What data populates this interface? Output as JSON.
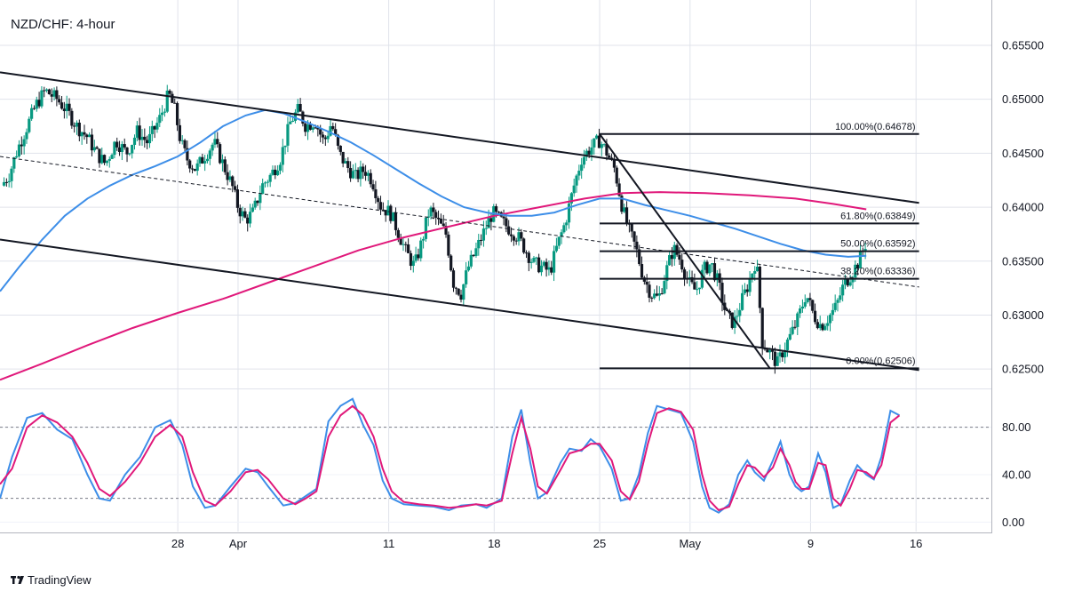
{
  "title": "NZD/CHF: 4-hour",
  "brand": "TradingView",
  "colors": {
    "bull": "#089981",
    "bear": "#131722",
    "ma_blue": "#3d8ee8",
    "ma_pink": "#e0187a",
    "stoch_k": "#3d8ee8",
    "stoch_d": "#e0187a",
    "grid": "#e0e3eb"
  },
  "chart_data": [
    {
      "type": "candlestick",
      "title": "NZD/CHF: 4-hour",
      "ylim": [
        0.6232,
        0.6592
      ],
      "y_ticks": [
        "0.62500",
        "0.63000",
        "0.63500",
        "0.64000",
        "0.64500",
        "0.65000",
        "0.65500"
      ],
      "x_ticks": [
        {
          "label": "28",
          "day": 7
        },
        {
          "label": "Apr",
          "day": 11
        },
        {
          "label": "11",
          "day": 21
        },
        {
          "label": "18",
          "day": 28
        },
        {
          "label": "25",
          "day": 35
        },
        {
          "label": "May",
          "day": 41
        },
        {
          "label": "9",
          "day": 49
        },
        {
          "label": "16",
          "day": 56
        }
      ],
      "day_range": [
        -4.8,
        61
      ],
      "price_path": [
        [
          -4.7,
          0.642
        ],
        [
          -4.2,
          0.643
        ],
        [
          -3.6,
          0.6455
        ],
        [
          -3.0,
          0.6475
        ],
        [
          -2.4,
          0.6495
        ],
        [
          -1.8,
          0.6508
        ],
        [
          -1.0,
          0.65
        ],
        [
          -0.4,
          0.649
        ],
        [
          0.3,
          0.6475
        ],
        [
          1.0,
          0.6465
        ],
        [
          1.6,
          0.645
        ],
        [
          2.2,
          0.644
        ],
        [
          2.9,
          0.6462
        ],
        [
          3.6,
          0.645
        ],
        [
          4.3,
          0.647
        ],
        [
          5.0,
          0.646
        ],
        [
          5.8,
          0.6482
        ],
        [
          6.4,
          0.6505
        ],
        [
          6.8,
          0.649
        ],
        [
          7.2,
          0.646
        ],
        [
          7.6,
          0.6445
        ],
        [
          8.2,
          0.6435
        ],
        [
          8.8,
          0.6448
        ],
        [
          9.4,
          0.646
        ],
        [
          10.0,
          0.644
        ],
        [
          10.6,
          0.642
        ],
        [
          11.0,
          0.64
        ],
        [
          11.5,
          0.6388
        ],
        [
          12.0,
          0.6395
        ],
        [
          12.6,
          0.642
        ],
        [
          13.2,
          0.643
        ],
        [
          13.8,
          0.6445
        ],
        [
          14.5,
          0.648
        ],
        [
          15.0,
          0.649
        ],
        [
          15.5,
          0.6475
        ],
        [
          16.1,
          0.648
        ],
        [
          16.7,
          0.646
        ],
        [
          17.2,
          0.6478
        ],
        [
          17.7,
          0.645
        ],
        [
          18.2,
          0.6438
        ],
        [
          18.8,
          0.6428
        ],
        [
          19.4,
          0.6435
        ],
        [
          19.9,
          0.6425
        ],
        [
          20.5,
          0.64
        ],
        [
          21.1,
          0.6395
        ],
        [
          21.6,
          0.6378
        ],
        [
          22.1,
          0.636
        ],
        [
          22.7,
          0.6345
        ],
        [
          23.2,
          0.6368
        ],
        [
          23.7,
          0.6398
        ],
        [
          24.2,
          0.6388
        ],
        [
          24.8,
          0.6375
        ],
        [
          25.3,
          0.633
        ],
        [
          25.8,
          0.632
        ],
        [
          26.3,
          0.6345
        ],
        [
          26.8,
          0.636
        ],
        [
          27.4,
          0.638
        ],
        [
          27.9,
          0.6395
        ],
        [
          28.4,
          0.6388
        ],
        [
          29.0,
          0.638
        ],
        [
          29.6,
          0.6372
        ],
        [
          30.1,
          0.636
        ],
        [
          30.6,
          0.6348
        ],
        [
          31.1,
          0.6345
        ],
        [
          31.7,
          0.634
        ],
        [
          32.2,
          0.6365
        ],
        [
          32.7,
          0.6385
        ],
        [
          33.3,
          0.642
        ],
        [
          33.8,
          0.6445
        ],
        [
          34.4,
          0.6455
        ],
        [
          35.0,
          0.6462
        ],
        [
          35.5,
          0.645
        ],
        [
          36.0,
          0.6435
        ],
        [
          36.5,
          0.64
        ],
        [
          36.9,
          0.638
        ],
        [
          37.4,
          0.6362
        ],
        [
          37.9,
          0.6335
        ],
        [
          38.4,
          0.632
        ],
        [
          38.9,
          0.6315
        ],
        [
          39.4,
          0.634
        ],
        [
          39.9,
          0.6362
        ],
        [
          40.4,
          0.635
        ],
        [
          40.9,
          0.633
        ],
        [
          41.4,
          0.6322
        ],
        [
          41.9,
          0.6342
        ],
        [
          42.4,
          0.6348
        ],
        [
          42.9,
          0.6328
        ],
        [
          43.4,
          0.63
        ],
        [
          43.9,
          0.6292
        ],
        [
          44.4,
          0.6312
        ],
        [
          44.9,
          0.633
        ],
        [
          45.4,
          0.6352
        ],
        [
          45.8,
          0.6275
        ],
        [
          46.3,
          0.6265
        ],
        [
          46.8,
          0.6255
        ],
        [
          47.2,
          0.6268
        ],
        [
          47.7,
          0.6282
        ],
        [
          48.2,
          0.6298
        ],
        [
          48.7,
          0.632
        ],
        [
          49.2,
          0.63
        ],
        [
          49.7,
          0.629
        ],
        [
          50.2,
          0.6298
        ],
        [
          50.7,
          0.6308
        ],
        [
          51.2,
          0.6328
        ],
        [
          51.7,
          0.6338
        ],
        [
          52.2,
          0.635
        ],
        [
          52.7,
          0.6368
        ]
      ],
      "ma_blue": [
        [
          -4.8,
          0.6322
        ],
        [
          -3.5,
          0.6345
        ],
        [
          -2.0,
          0.637
        ],
        [
          -0.5,
          0.6392
        ],
        [
          1.0,
          0.6408
        ],
        [
          2.5,
          0.642
        ],
        [
          4.0,
          0.643
        ],
        [
          5.5,
          0.6438
        ],
        [
          7.0,
          0.6447
        ],
        [
          8.5,
          0.646
        ],
        [
          10.0,
          0.6475
        ],
        [
          11.5,
          0.6485
        ],
        [
          12.8,
          0.649
        ],
        [
          14.0,
          0.6487
        ],
        [
          15.5,
          0.6479
        ],
        [
          17.0,
          0.647
        ],
        [
          18.5,
          0.646
        ],
        [
          20.0,
          0.6448
        ],
        [
          21.5,
          0.6435
        ],
        [
          23.0,
          0.6422
        ],
        [
          24.5,
          0.641
        ],
        [
          26.0,
          0.64
        ],
        [
          27.5,
          0.6395
        ],
        [
          29.0,
          0.6392
        ],
        [
          30.5,
          0.6392
        ],
        [
          32.0,
          0.6395
        ],
        [
          33.5,
          0.6402
        ],
        [
          35.0,
          0.6408
        ],
        [
          36.5,
          0.6408
        ],
        [
          38.0,
          0.6402
        ],
        [
          39.5,
          0.6397
        ],
        [
          41.0,
          0.6392
        ],
        [
          42.5,
          0.6386
        ],
        [
          44.0,
          0.638
        ],
        [
          45.5,
          0.6373
        ],
        [
          47.0,
          0.6366
        ],
        [
          48.5,
          0.636
        ],
        [
          50.0,
          0.6356
        ],
        [
          51.5,
          0.6354
        ],
        [
          52.7,
          0.6355
        ]
      ],
      "ma_pink": [
        [
          -4.8,
          0.624
        ],
        [
          -2.0,
          0.6255
        ],
        [
          1.0,
          0.6272
        ],
        [
          4.0,
          0.6288
        ],
        [
          7.0,
          0.6302
        ],
        [
          10.0,
          0.6315
        ],
        [
          13.0,
          0.633
        ],
        [
          16.0,
          0.6345
        ],
        [
          19.0,
          0.636
        ],
        [
          22.0,
          0.6372
        ],
        [
          25.0,
          0.6382
        ],
        [
          28.0,
          0.6392
        ],
        [
          31.0,
          0.64
        ],
        [
          34.0,
          0.6408
        ],
        [
          36.5,
          0.6413
        ],
        [
          39.0,
          0.6414
        ],
        [
          42.0,
          0.6413
        ],
        [
          45.0,
          0.6411
        ],
        [
          48.0,
          0.6408
        ],
        [
          50.5,
          0.6403
        ],
        [
          52.7,
          0.6398
        ]
      ],
      "channel_upper": [
        [
          -4.8,
          0.6525
        ],
        [
          56.2,
          0.6404
        ]
      ],
      "channel_lower": [
        [
          -4.8,
          0.637
        ],
        [
          56.2,
          0.6249
        ]
      ],
      "channel_mid": [
        [
          -4.8,
          0.6447
        ],
        [
          56.2,
          0.6326
        ]
      ],
      "trendline": [
        [
          35.0,
          0.64678
        ],
        [
          46.3,
          0.62506
        ]
      ],
      "fib_start_day": 35.0,
      "fib_end_day": 56.2,
      "fib_levels": [
        {
          "label": "100.00%(0.64678)",
          "price": 0.64678
        },
        {
          "label": "61.80%(0.63849)",
          "price": 0.63849
        },
        {
          "label": "50.00%(0.63592)",
          "price": 0.63592
        },
        {
          "label": "38.20%(0.63336)",
          "price": 0.63336
        },
        {
          "label": "0.00%(0.62506)",
          "price": 0.62506
        }
      ]
    },
    {
      "type": "line",
      "title": "",
      "ylim": [
        -8,
        112
      ],
      "y_ticks": [
        "0.00",
        "40.00",
        "80.00"
      ],
      "reference_lines": [
        20,
        80
      ],
      "stoch_k": [
        [
          -4.8,
          20
        ],
        [
          -4.0,
          55
        ],
        [
          -3.0,
          88
        ],
        [
          -2.0,
          92
        ],
        [
          -1.0,
          78
        ],
        [
          0.0,
          70
        ],
        [
          1.0,
          40
        ],
        [
          1.8,
          20
        ],
        [
          2.5,
          18
        ],
        [
          3.5,
          40
        ],
        [
          4.5,
          55
        ],
        [
          5.5,
          80
        ],
        [
          6.5,
          86
        ],
        [
          7.3,
          65
        ],
        [
          8.0,
          30
        ],
        [
          8.8,
          12
        ],
        [
          9.5,
          14
        ],
        [
          10.5,
          30
        ],
        [
          11.5,
          45
        ],
        [
          12.3,
          42
        ],
        [
          13.0,
          30
        ],
        [
          14.0,
          14
        ],
        [
          14.8,
          16
        ],
        [
          15.5,
          22
        ],
        [
          16.2,
          28
        ],
        [
          17.0,
          85
        ],
        [
          17.8,
          98
        ],
        [
          18.6,
          104
        ],
        [
          19.3,
          82
        ],
        [
          20.0,
          65
        ],
        [
          20.6,
          35
        ],
        [
          21.2,
          20
        ],
        [
          22.0,
          15
        ],
        [
          23.0,
          14
        ],
        [
          24.0,
          13
        ],
        [
          25.0,
          10
        ],
        [
          25.8,
          14
        ],
        [
          26.8,
          15
        ],
        [
          27.5,
          12
        ],
        [
          28.5,
          20
        ],
        [
          29.2,
          72
        ],
        [
          29.8,
          95
        ],
        [
          30.4,
          50
        ],
        [
          30.9,
          20
        ],
        [
          31.5,
          25
        ],
        [
          32.4,
          50
        ],
        [
          33.0,
          62
        ],
        [
          33.8,
          60
        ],
        [
          34.4,
          70
        ],
        [
          35.0,
          64
        ],
        [
          35.8,
          45
        ],
        [
          36.4,
          18
        ],
        [
          37.0,
          20
        ],
        [
          37.6,
          40
        ],
        [
          38.2,
          75
        ],
        [
          38.8,
          98
        ],
        [
          39.6,
          95
        ],
        [
          40.4,
          92
        ],
        [
          41.2,
          68
        ],
        [
          41.8,
          30
        ],
        [
          42.3,
          12
        ],
        [
          42.9,
          8
        ],
        [
          43.6,
          15
        ],
        [
          44.2,
          40
        ],
        [
          44.8,
          52
        ],
        [
          45.3,
          42
        ],
        [
          45.9,
          35
        ],
        [
          46.5,
          52
        ],
        [
          47.0,
          68
        ],
        [
          47.6,
          40
        ],
        [
          48.0,
          30
        ],
        [
          48.4,
          26
        ],
        [
          48.9,
          30
        ],
        [
          49.5,
          58
        ],
        [
          50.0,
          42
        ],
        [
          50.5,
          12
        ],
        [
          51.0,
          15
        ],
        [
          51.6,
          35
        ],
        [
          52.1,
          48
        ],
        [
          52.7,
          40
        ],
        [
          53.2,
          36
        ],
        [
          53.7,
          55
        ],
        [
          54.3,
          94
        ],
        [
          54.9,
          90
        ]
      ],
      "stoch_d": [
        [
          -4.8,
          32
        ],
        [
          -4.0,
          45
        ],
        [
          -3.0,
          80
        ],
        [
          -2.0,
          90
        ],
        [
          -1.0,
          84
        ],
        [
          0.0,
          72
        ],
        [
          1.0,
          50
        ],
        [
          1.8,
          28
        ],
        [
          2.5,
          22
        ],
        [
          3.5,
          34
        ],
        [
          4.5,
          50
        ],
        [
          5.5,
          72
        ],
        [
          6.5,
          82
        ],
        [
          7.3,
          72
        ],
        [
          8.0,
          42
        ],
        [
          8.8,
          18
        ],
        [
          9.5,
          14
        ],
        [
          10.5,
          26
        ],
        [
          11.5,
          42
        ],
        [
          12.3,
          44
        ],
        [
          13.0,
          36
        ],
        [
          14.0,
          20
        ],
        [
          14.8,
          15
        ],
        [
          15.5,
          20
        ],
        [
          16.2,
          26
        ],
        [
          17.0,
          72
        ],
        [
          17.8,
          90
        ],
        [
          18.6,
          98
        ],
        [
          19.3,
          90
        ],
        [
          20.0,
          72
        ],
        [
          20.6,
          45
        ],
        [
          21.2,
          26
        ],
        [
          22.0,
          17
        ],
        [
          23.0,
          15
        ],
        [
          24.0,
          14
        ],
        [
          25.0,
          12
        ],
        [
          25.8,
          13
        ],
        [
          26.8,
          15
        ],
        [
          27.5,
          14
        ],
        [
          28.5,
          18
        ],
        [
          29.2,
          58
        ],
        [
          29.8,
          88
        ],
        [
          30.4,
          62
        ],
        [
          30.9,
          30
        ],
        [
          31.5,
          24
        ],
        [
          32.4,
          44
        ],
        [
          33.0,
          58
        ],
        [
          33.8,
          61
        ],
        [
          34.4,
          66
        ],
        [
          35.0,
          66
        ],
        [
          35.8,
          52
        ],
        [
          36.4,
          26
        ],
        [
          37.0,
          19
        ],
        [
          37.6,
          34
        ],
        [
          38.2,
          66
        ],
        [
          38.8,
          92
        ],
        [
          39.6,
          96
        ],
        [
          40.4,
          93
        ],
        [
          41.2,
          78
        ],
        [
          41.8,
          40
        ],
        [
          42.3,
          18
        ],
        [
          42.9,
          10
        ],
        [
          43.6,
          13
        ],
        [
          44.2,
          32
        ],
        [
          44.8,
          48
        ],
        [
          45.3,
          46
        ],
        [
          45.9,
          38
        ],
        [
          46.5,
          46
        ],
        [
          47.0,
          62
        ],
        [
          47.6,
          48
        ],
        [
          48.0,
          34
        ],
        [
          48.4,
          28
        ],
        [
          48.9,
          28
        ],
        [
          49.5,
          50
        ],
        [
          50.0,
          48
        ],
        [
          50.5,
          20
        ],
        [
          51.0,
          14
        ],
        [
          51.6,
          28
        ],
        [
          52.1,
          44
        ],
        [
          52.7,
          42
        ],
        [
          53.2,
          37
        ],
        [
          53.7,
          48
        ],
        [
          54.3,
          84
        ],
        [
          54.9,
          90
        ]
      ]
    }
  ]
}
